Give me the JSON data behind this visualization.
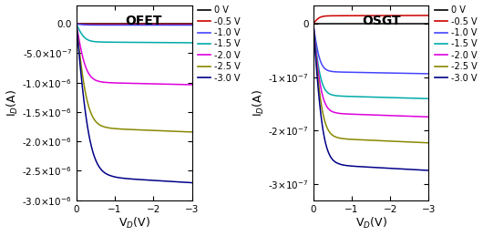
{
  "ofet": {
    "title": "OFET",
    "xlabel": "V$_D$(V)",
    "ylabel": "I$_D$(A)",
    "xlim": [
      0,
      -3
    ],
    "ylim": [
      3.2e-07,
      -3e-06
    ],
    "yticks": [
      0.0,
      -5e-07,
      -1e-06,
      -1.5e-06,
      -2e-06,
      -2.5e-06,
      -3e-06
    ],
    "xticks": [
      0,
      -1,
      -2,
      -3
    ],
    "curves": [
      {
        "vg": "0 V",
        "color": "#000000",
        "sat": 0.0,
        "knee": 0.5
      },
      {
        "vg": "-0.5 V",
        "color": "#cc0000",
        "sat": -4e-09,
        "knee": 0.5
      },
      {
        "vg": "-1.0 V",
        "color": "#4444ff",
        "sat": -2e-08,
        "knee": 0.5
      },
      {
        "vg": "-1.5 V",
        "color": "#00aaaa",
        "sat": -3.1e-07,
        "knee": 0.55
      },
      {
        "vg": "-2.0 V",
        "color": "#dd00dd",
        "sat": -1e-06,
        "knee": 0.65
      },
      {
        "vg": "-2.5 V",
        "color": "#888800",
        "sat": -1.78e-06,
        "knee": 0.75
      },
      {
        "vg": "-3.0 V",
        "color": "#000088",
        "sat": -2.62e-06,
        "knee": 0.9
      }
    ]
  },
  "osgt": {
    "title": "OSGT",
    "xlabel": "V$_D$(V)",
    "ylabel": "I$_D$(A)",
    "xlim": [
      0,
      -3
    ],
    "ylim": [
      3.5e-08,
      -3.3e-07
    ],
    "yticks": [
      0.0,
      -1e-07,
      -2e-07,
      -3e-07
    ],
    "xticks": [
      0,
      -1,
      -2,
      -3
    ],
    "curves": [
      {
        "vg": "0 V",
        "color": "#000000",
        "sat": 0.0,
        "knee": 0.4
      },
      {
        "vg": "-0.5 V",
        "color": "#cc0000",
        "sat": 1.5e-08,
        "knee": 0.4
      },
      {
        "vg": "-1.0 V",
        "color": "#4444ff",
        "sat": -9e-08,
        "knee": 0.45
      },
      {
        "vg": "-1.5 V",
        "color": "#00aaaa",
        "sat": -1.35e-07,
        "knee": 0.5
      },
      {
        "vg": "-2.0 V",
        "color": "#dd00dd",
        "sat": -1.68e-07,
        "knee": 0.55
      },
      {
        "vg": "-2.5 V",
        "color": "#888800",
        "sat": -2.15e-07,
        "knee": 0.6
      },
      {
        "vg": "-3.0 V",
        "color": "#000088",
        "sat": -2.65e-07,
        "knee": 0.65
      }
    ]
  },
  "legend_labels": [
    "0 V",
    "-0.5 V",
    "-1.0 V",
    "-1.5 V",
    "-2.0 V",
    "-2.5 V",
    "-3.0 V"
  ],
  "legend_colors": [
    "#000000",
    "#cc0000",
    "#4444ff",
    "#00aaaa",
    "#dd00dd",
    "#888800",
    "#000088"
  ]
}
